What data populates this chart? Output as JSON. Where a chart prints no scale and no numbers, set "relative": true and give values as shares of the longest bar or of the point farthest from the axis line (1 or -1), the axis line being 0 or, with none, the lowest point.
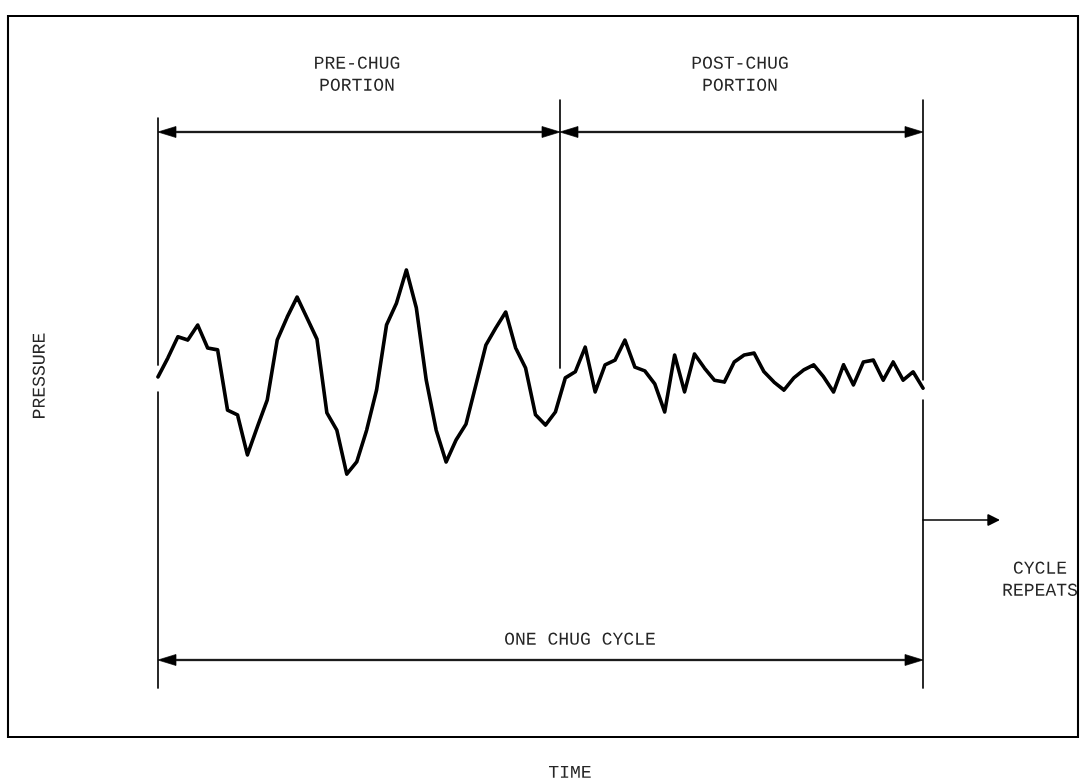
{
  "chart_data": {
    "type": "line",
    "relative": true,
    "xlabel": "TIME",
    "marker": "none",
    "line_style": "solid",
    "categories": [
      null,
      null,
      null,
      null,
      null,
      null,
      null,
      null,
      null,
      null,
      null,
      null,
      null,
      null,
      null,
      null,
      null,
      null,
      null,
      null,
      null,
      null,
      null,
      null,
      null,
      null,
      null,
      null,
      null,
      null,
      null,
      null,
      null,
      null,
      null,
      null,
      null,
      null,
      null,
      null,
      null,
      null,
      null,
      null,
      null,
      null,
      null,
      null,
      null,
      null,
      null,
      null,
      null,
      null,
      null,
      null,
      null,
      null,
      null,
      null,
      null,
      null,
      null,
      null,
      null,
      null,
      null,
      null,
      null,
      null,
      null,
      null,
      null,
      null,
      null,
      null,
      null,
      null
    ],
    "series": [
      {
        "color": "#000000",
        "values": [
          0.771,
          0.812,
          0.857,
          0.85,
          0.882,
          0.833,
          0.829,
          0.7,
          0.69,
          0.604,
          0.664,
          0.722,
          0.85,
          0.899,
          0.942,
          0.897,
          0.852,
          0.694,
          0.657,
          0.563,
          0.589,
          0.657,
          0.743,
          0.882,
          0.929,
          1.0,
          0.919,
          0.764,
          0.657,
          0.589,
          0.636,
          0.67,
          0.754,
          0.839,
          0.876,
          0.91,
          0.833,
          0.79,
          0.69,
          0.668,
          0.696,
          0.769,
          0.782,
          0.835,
          0.739,
          0.797,
          0.807,
          0.85,
          0.792,
          0.784,
          0.756,
          0.696,
          0.818,
          0.739,
          0.82,
          0.79,
          0.764,
          0.76,
          0.803,
          0.818,
          0.822,
          0.782,
          0.76,
          0.743,
          0.769,
          0.786,
          0.797,
          0.771,
          0.739,
          0.797,
          0.754,
          0.803,
          0.807,
          0.764,
          0.803,
          0.764,
          0.782,
          0.747
        ]
      }
    ],
    "annotations": [
      "PRE-CHUG\nPORTION",
      "POST-CHUG\nPORTION",
      "ONE CHUG CYCLE",
      "CYCLE\nREPEATS",
      "PRESSURE"
    ]
  }
}
